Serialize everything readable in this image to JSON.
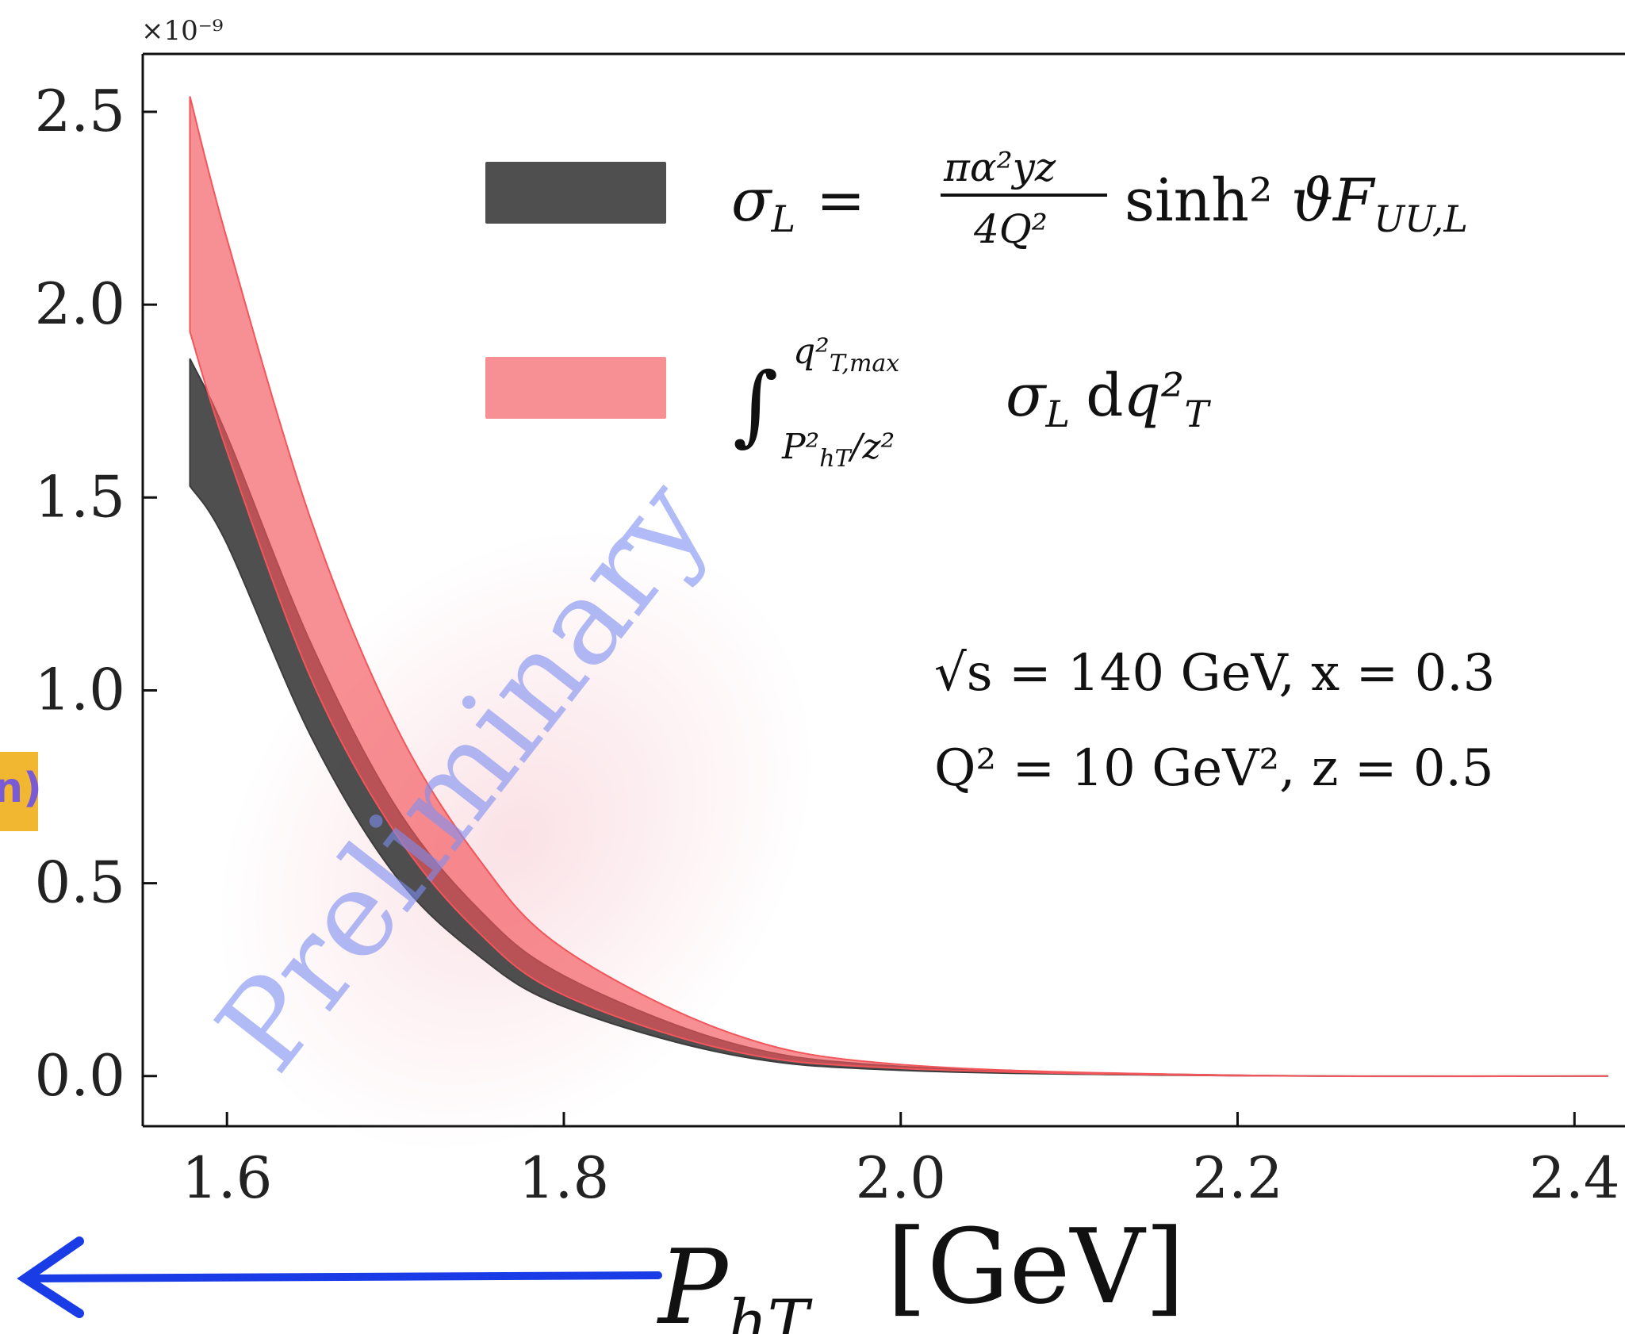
{
  "chart_data": {
    "type": "area",
    "y_multiplier_label": "×10⁻⁹",
    "xlim": [
      1.55,
      2.43
    ],
    "ylim": [
      -0.13,
      2.65
    ],
    "x_ticks": [
      1.6,
      1.8,
      2.0,
      2.2,
      2.4
    ],
    "x_tick_labels": [
      "1.6",
      "1.8",
      "2.0",
      "2.2",
      "2.4"
    ],
    "y_ticks": [
      0.0,
      0.5,
      1.0,
      1.5,
      2.0,
      2.5
    ],
    "y_tick_labels": [
      "0.0",
      "0.5",
      "1.0",
      "1.5",
      "2.0",
      "2.5"
    ],
    "xlabel": "P_hT [GeV]",
    "series": [
      {
        "name": "σ_L = (πα²yz / 4Q²) sinh²ϑ F_UU,L",
        "color": "#3c3c3c",
        "x": [
          1.578,
          1.6,
          1.65,
          1.7,
          1.75,
          1.8,
          1.9,
          2.0,
          2.2,
          2.42
        ],
        "lower": [
          1.53,
          1.38,
          0.88,
          0.52,
          0.31,
          0.18,
          0.055,
          0.015,
          0.001,
          0.0
        ],
        "upper": [
          1.86,
          1.66,
          1.12,
          0.7,
          0.43,
          0.26,
          0.085,
          0.025,
          0.002,
          0.0
        ]
      },
      {
        "name": "∫_{P²_hT/z²}^{q²_T,max} σ_L dq²_T",
        "color": "#f2555a",
        "x": [
          1.578,
          1.6,
          1.65,
          1.7,
          1.75,
          1.8,
          1.9,
          2.0,
          2.2,
          2.42
        ],
        "lower": [
          1.93,
          1.62,
          1.03,
          0.63,
          0.37,
          0.21,
          0.065,
          0.02,
          0.001,
          0.0
        ],
        "upper": [
          2.54,
          2.17,
          1.44,
          0.91,
          0.56,
          0.33,
          0.11,
          0.03,
          0.002,
          0.0
        ]
      }
    ],
    "annotations": [
      "√s = 140 GeV,  x = 0.3",
      "Q² = 10 GeV²,  z = 0.5"
    ],
    "watermark": "Preliminary",
    "side_tag": "n)"
  }
}
